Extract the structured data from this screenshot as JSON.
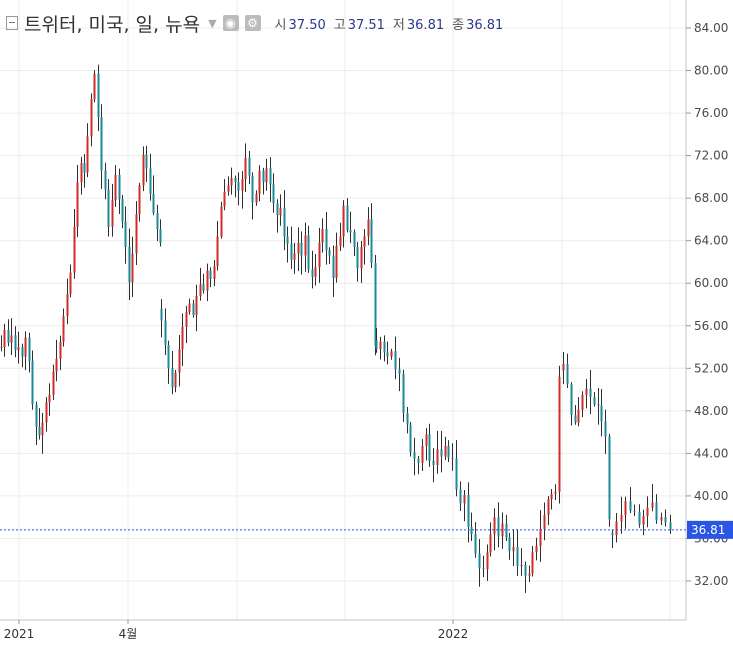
{
  "header": {
    "title": "트위터, 미국, 일, 뉴욕",
    "ohlc": [
      {
        "label": "시",
        "value": "37.50"
      },
      {
        "label": "고",
        "value": "37.51"
      },
      {
        "label": "저",
        "value": "36.81"
      },
      {
        "label": "종",
        "value": "36.81"
      }
    ],
    "icons": [
      "collapse-icon",
      "chevron-down-icon",
      "eye-icon",
      "gear-icon"
    ]
  },
  "chart_data": {
    "type": "candlestick",
    "yticks": [
      "84.00",
      "80.00",
      "76.00",
      "72.00",
      "68.00",
      "64.00",
      "60.00",
      "56.00",
      "52.00",
      "48.00",
      "44.00",
      "40.00",
      "36.00",
      "32.00"
    ],
    "ylim": [
      29.5,
      86.0
    ],
    "xticks": [
      "2021",
      "4월",
      "2022"
    ],
    "last_price": "36.81",
    "colors": {
      "up": "#cf2c2c",
      "down": "#1b8a97",
      "last_line": "#2a55e5",
      "grid": "#ececec"
    },
    "closes": [
      54.0,
      55.6,
      54.4,
      55.1,
      53.7,
      54.0,
      53.1,
      54.9,
      52.7,
      48.6,
      46.5,
      45.7,
      46.9,
      48.8,
      49.5,
      51.7,
      52.9,
      54.5,
      56.9,
      59.0,
      61.0,
      65.3,
      69.5,
      71.3,
      70.4,
      73.8,
      77.3,
      79.7,
      75.6,
      70.6,
      68.8,
      65.3,
      67.8,
      70.2,
      67.9,
      65.8,
      63.4,
      60.1,
      62.8,
      66.5,
      69.2,
      72.1,
      70.8,
      68.4,
      66.6,
      65.1,
      63.8,
      56.5,
      54.2,
      52.0,
      50.2,
      51.6,
      53.8,
      55.9,
      57.3,
      58.1,
      57.0,
      58.8,
      59.9,
      59.3,
      61.2,
      60.4,
      61.6,
      64.4,
      67.2,
      68.6,
      69.2,
      69.9,
      69.5,
      68.7,
      69.8,
      71.8,
      70.1,
      67.6,
      68.4,
      70.6,
      69.5,
      70.8,
      69.3,
      67.5,
      66.4,
      67.1,
      64.4,
      63.7,
      62.2,
      62.8,
      63.8,
      62.6,
      64.5,
      61.3,
      60.6,
      61.5,
      63.8,
      65.1,
      63.1,
      62.6,
      60.5,
      63.5,
      64.4,
      67.3,
      65.0,
      64.8,
      63.4,
      61.4,
      63.4,
      64.4,
      66.0,
      61.9,
      54.1,
      53.8,
      54.5,
      53.5,
      53.1,
      53.6,
      51.9,
      51.5,
      47.8,
      46.7,
      44.1,
      43.5,
      43.1,
      44.7,
      45.8,
      43.3,
      42.9,
      44.4,
      43.7,
      44.7,
      43.6,
      43.5,
      40.6,
      39.3,
      40.1,
      37.1,
      36.4,
      34.6,
      33.2,
      33.1,
      34.7,
      36.4,
      38.0,
      36.2,
      37.4,
      36.1,
      34.8,
      35.2,
      33.4,
      33.5,
      32.5,
      32.7,
      34.7,
      35.3,
      36.9,
      38.2,
      39.7,
      40.2,
      40.4,
      51.2,
      52.4,
      50.5,
      47.6,
      46.9,
      48.1,
      49.5,
      50.1,
      49.3,
      48.6,
      48.5,
      47.0,
      45.6,
      37.8,
      36.3,
      37.6,
      38.2,
      39.5,
      38.6,
      38.5,
      37.3,
      38.1,
      38.9,
      39.4,
      37.7,
      38.0,
      37.5,
      36.8
    ]
  }
}
